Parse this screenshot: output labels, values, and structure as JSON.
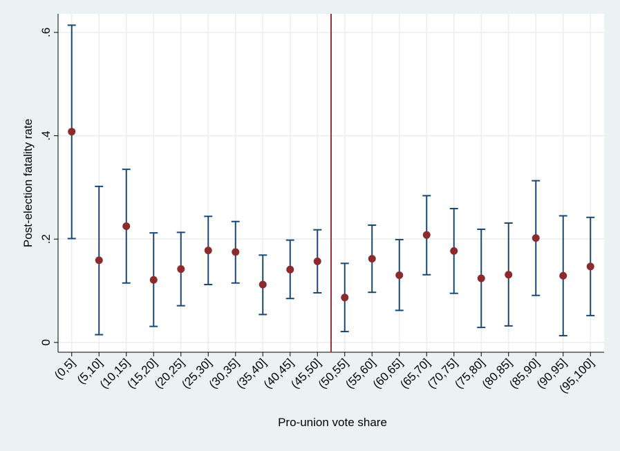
{
  "chart_data": {
    "type": "errorbar",
    "x_label": "Pro-union vote share",
    "y_label": "Post-election fatality rate",
    "categories": [
      "(0,5]",
      "(5,10]",
      "(10,15]",
      "(15,20]",
      "(20,25]",
      "(25,30]",
      "(30,35]",
      "(35,40]",
      "(40,45]",
      "(45,50]",
      "(50,55]",
      "(55,60]",
      "(60,65]",
      "(65,70]",
      "(70,75]",
      "(75,80]",
      "(80,85]",
      "(85,90]",
      "(90,95]",
      "(95,100]"
    ],
    "values": [
      0.408,
      0.159,
      0.225,
      0.121,
      0.142,
      0.178,
      0.175,
      0.112,
      0.141,
      0.157,
      0.087,
      0.162,
      0.13,
      0.208,
      0.177,
      0.124,
      0.131,
      0.202,
      0.129,
      0.147
    ],
    "lower": [
      0.201,
      0.015,
      0.115,
      0.031,
      0.071,
      0.112,
      0.115,
      0.054,
      0.085,
      0.096,
      0.021,
      0.097,
      0.062,
      0.131,
      0.095,
      0.029,
      0.032,
      0.091,
      0.013,
      0.052
    ],
    "upper": [
      0.614,
      0.302,
      0.335,
      0.212,
      0.213,
      0.244,
      0.234,
      0.169,
      0.198,
      0.218,
      0.153,
      0.227,
      0.199,
      0.284,
      0.259,
      0.219,
      0.231,
      0.313,
      0.245,
      0.242
    ],
    "marker_color": "#8b2b2e",
    "bar_color": "#1a476f",
    "line_color": "#a52a35",
    "ylim": [
      -0.019,
      0.636
    ],
    "yticks": [
      {
        "value": 0,
        "label": "0"
      },
      {
        "value": 0.2,
        "label": ".2"
      },
      {
        "value": 0.4,
        "label": ".4"
      },
      {
        "value": 0.6,
        "label": ".6"
      }
    ],
    "grid": true
  }
}
